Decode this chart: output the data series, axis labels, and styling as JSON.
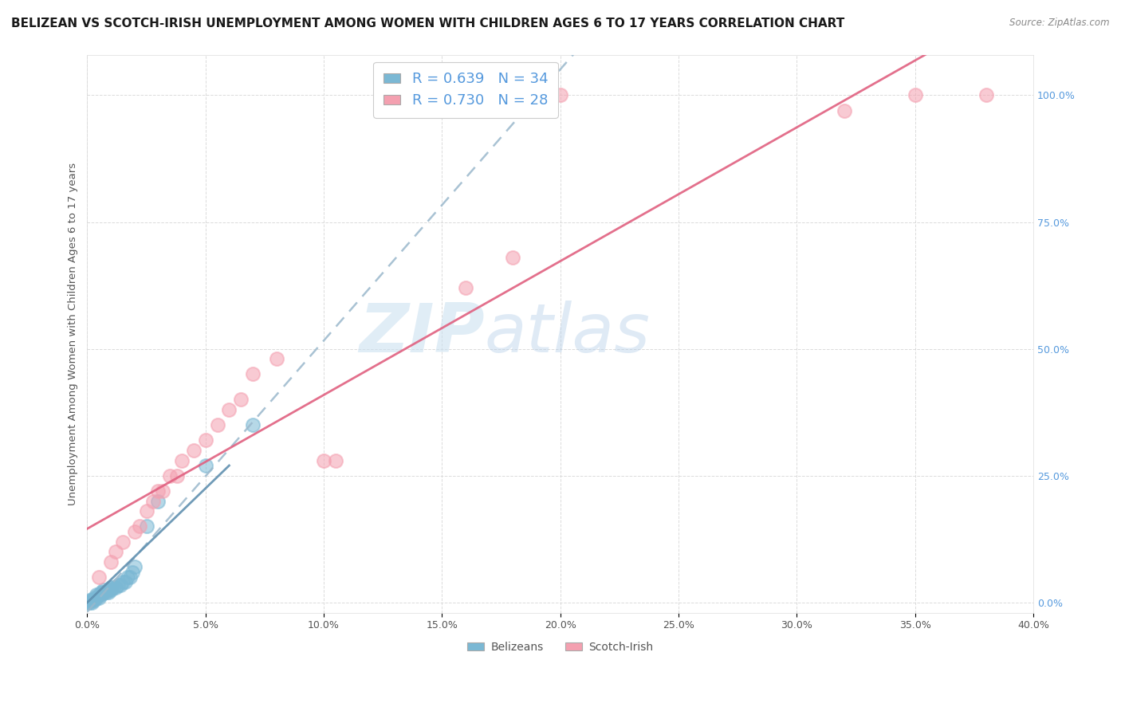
{
  "title": "BELIZEAN VS SCOTCH-IRISH UNEMPLOYMENT AMONG WOMEN WITH CHILDREN AGES 6 TO 17 YEARS CORRELATION CHART",
  "source": "Source: ZipAtlas.com",
  "ylabel": "Unemployment Among Women with Children Ages 6 to 17 years",
  "watermark_zip": "ZIP",
  "watermark_atlas": "atlas",
  "belizean_color": "#7bb8d4",
  "scotch_color": "#f4a0b0",
  "belizean_line_color": "#6090b0",
  "scotch_line_color": "#e06080",
  "belizean_R": 0.639,
  "belizean_N": 34,
  "scotch_R": 0.73,
  "scotch_N": 28,
  "xlim": [
    0.0,
    0.4
  ],
  "ylim": [
    -0.02,
    1.08
  ],
  "xticks": [
    0.0,
    0.05,
    0.1,
    0.15,
    0.2,
    0.25,
    0.3,
    0.35,
    0.4
  ],
  "yticks": [
    0.0,
    0.25,
    0.5,
    0.75,
    1.0
  ],
  "belizean_x": [
    0.0,
    0.001,
    0.001,
    0.002,
    0.002,
    0.003,
    0.003,
    0.004,
    0.004,
    0.005,
    0.005,
    0.006,
    0.006,
    0.007,
    0.007,
    0.008,
    0.009,
    0.009,
    0.01,
    0.01,
    0.011,
    0.012,
    0.013,
    0.014,
    0.015,
    0.016,
    0.017,
    0.018,
    0.019,
    0.02,
    0.025,
    0.03,
    0.05,
    0.07
  ],
  "belizean_y": [
    0.0,
    0.0,
    0.005,
    0.0,
    0.005,
    0.005,
    0.01,
    0.01,
    0.015,
    0.01,
    0.015,
    0.015,
    0.02,
    0.02,
    0.025,
    0.02,
    0.02,
    0.025,
    0.025,
    0.03,
    0.03,
    0.03,
    0.035,
    0.035,
    0.04,
    0.04,
    0.05,
    0.05,
    0.06,
    0.07,
    0.15,
    0.2,
    0.27,
    0.35
  ],
  "scotch_x": [
    0.005,
    0.01,
    0.012,
    0.015,
    0.02,
    0.022,
    0.025,
    0.028,
    0.03,
    0.032,
    0.035,
    0.038,
    0.04,
    0.045,
    0.05,
    0.055,
    0.06,
    0.065,
    0.07,
    0.08,
    0.1,
    0.105,
    0.16,
    0.18,
    0.2,
    0.32,
    0.35,
    0.38
  ],
  "scotch_y": [
    0.05,
    0.08,
    0.1,
    0.12,
    0.14,
    0.15,
    0.18,
    0.2,
    0.22,
    0.22,
    0.25,
    0.25,
    0.28,
    0.3,
    0.32,
    0.35,
    0.38,
    0.4,
    0.45,
    0.48,
    0.28,
    0.28,
    0.62,
    0.68,
    1.0,
    0.97,
    1.0,
    1.0
  ],
  "background_color": "#ffffff",
  "grid_color": "#d8d8d8",
  "title_fontsize": 11,
  "axis_label_fontsize": 9.5,
  "tick_fontsize": 9,
  "legend_fontsize": 13
}
